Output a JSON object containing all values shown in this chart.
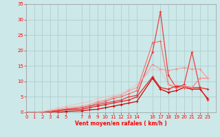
{
  "bg_color": "#cce8e8",
  "grid_color": "#b0d0d0",
  "xlabel": "Vent moyen/en rafales ( km/h )",
  "x_ticks": [
    0,
    1,
    2,
    3,
    4,
    5,
    7,
    8,
    9,
    10,
    11,
    12,
    13,
    14,
    16,
    17,
    18,
    19,
    20,
    21,
    22,
    23
  ],
  "x_max": 24,
  "y_max": 35,
  "y_ticks": [
    0,
    5,
    10,
    15,
    20,
    25,
    30,
    35
  ],
  "lines": [
    {
      "color": "#cc0000",
      "alpha": 1.0,
      "lw": 0.9,
      "x": [
        0,
        1,
        2,
        3,
        4,
        5,
        7,
        8,
        9,
        10,
        11,
        12,
        13,
        14,
        16,
        17,
        18,
        19,
        20,
        21,
        22,
        23
      ],
      "y": [
        0,
        0,
        0,
        0,
        0,
        0.3,
        0.5,
        0.8,
        1.0,
        1.5,
        2.0,
        2.5,
        3.0,
        3.5,
        11,
        7.5,
        6.5,
        7.0,
        8.0,
        7.5,
        7.5,
        4.5
      ]
    },
    {
      "color": "#dd1111",
      "alpha": 0.9,
      "lw": 0.9,
      "x": [
        0,
        1,
        2,
        3,
        4,
        5,
        7,
        8,
        9,
        10,
        11,
        12,
        13,
        14,
        16,
        17,
        18,
        19,
        20,
        21,
        22,
        23
      ],
      "y": [
        0,
        0,
        0,
        0.2,
        0.5,
        0.8,
        1.0,
        1.5,
        2.0,
        2.5,
        3.0,
        3.5,
        4.0,
        5.0,
        11.5,
        8.0,
        7.5,
        8.5,
        8.5,
        8.0,
        8.0,
        7.5
      ]
    },
    {
      "color": "#ee2222",
      "alpha": 0.85,
      "lw": 0.9,
      "x": [
        0,
        1,
        2,
        3,
        4,
        5,
        7,
        8,
        9,
        10,
        11,
        12,
        13,
        14,
        16,
        17,
        18,
        19,
        20,
        21,
        22,
        23
      ],
      "y": [
        0,
        0,
        0,
        0.3,
        0.6,
        1.0,
        1.5,
        2.0,
        2.5,
        3.0,
        3.5,
        4.0,
        5.0,
        5.5,
        19.5,
        32.5,
        12.0,
        8.0,
        9.0,
        19.5,
        8.0,
        4.0
      ]
    },
    {
      "color": "#ff4444",
      "alpha": 0.75,
      "lw": 0.8,
      "x": [
        0,
        1,
        2,
        3,
        4,
        5,
        7,
        8,
        9,
        10,
        11,
        12,
        13,
        14,
        16,
        17,
        18,
        19,
        20,
        21,
        22,
        23
      ],
      "y": [
        0,
        0,
        0,
        0.3,
        0.7,
        1.0,
        1.5,
        2.0,
        3.0,
        3.5,
        4.5,
        5.0,
        6.0,
        7.0,
        22.5,
        23.0,
        9.0,
        8.0,
        8.0,
        8.0,
        11.0,
        11.0
      ]
    },
    {
      "color": "#ff7777",
      "alpha": 0.65,
      "lw": 0.8,
      "x": [
        0,
        1,
        2,
        3,
        4,
        5,
        7,
        8,
        9,
        10,
        11,
        12,
        13,
        14,
        16,
        17,
        18,
        19,
        20,
        21,
        22,
        23
      ],
      "y": [
        0,
        0,
        0.2,
        0.5,
        1.0,
        1.5,
        2.0,
        2.5,
        3.5,
        4.0,
        5.0,
        5.5,
        7.0,
        8.0,
        15.5,
        14.0,
        13.5,
        14.0,
        14.5,
        14.0,
        14.0,
        11.0
      ]
    },
    {
      "color": "#ffaaaa",
      "alpha": 0.55,
      "lw": 0.8,
      "x": [
        0,
        1,
        2,
        3,
        4,
        5,
        7,
        8,
        9,
        10,
        11,
        12,
        13,
        14,
        16,
        17,
        18,
        19,
        20,
        21,
        22,
        23
      ],
      "y": [
        0,
        0,
        0.3,
        0.8,
        1.5,
        2.0,
        3.0,
        3.5,
        4.5,
        5.0,
        5.5,
        6.0,
        7.5,
        9.0,
        14.0,
        13.5,
        9.0,
        9.0,
        8.5,
        8.0,
        11.0,
        11.0
      ]
    }
  ],
  "tick_color": "#ff0000",
  "label_color": "#ff0000",
  "label_fontsize": 5.5,
  "tick_fontsize": 5.0
}
